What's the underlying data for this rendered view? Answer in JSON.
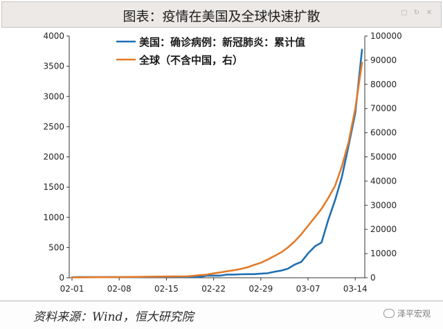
{
  "header": {
    "title": "图表：疫情在美国及全球快速扩散",
    "window_icons": [
      "square-icon",
      "refresh-icon",
      "close-icon"
    ]
  },
  "footer": {
    "source": "资料来源：Wind，恒大研究院",
    "watermark": "泽平宏观"
  },
  "chart_data": {
    "type": "line",
    "title": "图表：疫情在美国及全球快速扩散",
    "x": [
      "02-01",
      "02-02",
      "02-03",
      "02-04",
      "02-05",
      "02-06",
      "02-07",
      "02-08",
      "02-09",
      "02-10",
      "02-11",
      "02-12",
      "02-13",
      "02-14",
      "02-15",
      "02-16",
      "02-17",
      "02-18",
      "02-19",
      "02-20",
      "02-21",
      "02-22",
      "02-23",
      "02-24",
      "02-25",
      "02-26",
      "02-27",
      "02-28",
      "02-29",
      "03-01",
      "03-02",
      "03-03",
      "03-04",
      "03-05",
      "03-06",
      "03-07",
      "03-08",
      "03-09",
      "03-10",
      "03-11",
      "03-12",
      "03-13",
      "03-14",
      "03-15"
    ],
    "x_tick_labels": [
      "02-01",
      "02-08",
      "02-15",
      "02-22",
      "02-29",
      "03-07",
      "03-14"
    ],
    "y_left": {
      "ticks": [
        0,
        500,
        1000,
        1500,
        2000,
        2500,
        3000,
        3500,
        4000
      ],
      "ylim": [
        0,
        4000
      ]
    },
    "y_right": {
      "ticks": [
        0,
        10000,
        20000,
        30000,
        40000,
        50000,
        60000,
        70000,
        80000,
        90000,
        100000
      ],
      "ylim": [
        0,
        100000
      ]
    },
    "series": [
      {
        "name": "美国：确诊病例：新冠肺炎：累计值",
        "axis": "left",
        "color": "#1f6fb2",
        "values": [
          8,
          11,
          11,
          11,
          12,
          12,
          12,
          12,
          12,
          13,
          13,
          14,
          15,
          15,
          15,
          15,
          15,
          15,
          15,
          15,
          35,
          35,
          35,
          53,
          53,
          57,
          60,
          60,
          68,
          74,
          98,
          118,
          149,
          217,
          262,
          402,
          518,
          583,
          959,
          1281,
          1663,
          2179,
          2727,
          3774
        ]
      },
      {
        "name": "全球（不含中国，右）",
        "axis": "right",
        "color": "#e27b2a",
        "values": [
          130,
          150,
          160,
          190,
          220,
          240,
          270,
          290,
          310,
          330,
          360,
          420,
          450,
          490,
          520,
          540,
          560,
          600,
          800,
          1100,
          1300,
          1800,
          2200,
          2700,
          3100,
          3600,
          4300,
          5300,
          6200,
          7500,
          9000,
          10500,
          12500,
          15000,
          18000,
          21500,
          25000,
          28500,
          33000,
          38000,
          46000,
          56000,
          70000,
          89000
        ]
      }
    ],
    "legend_position": "top"
  }
}
